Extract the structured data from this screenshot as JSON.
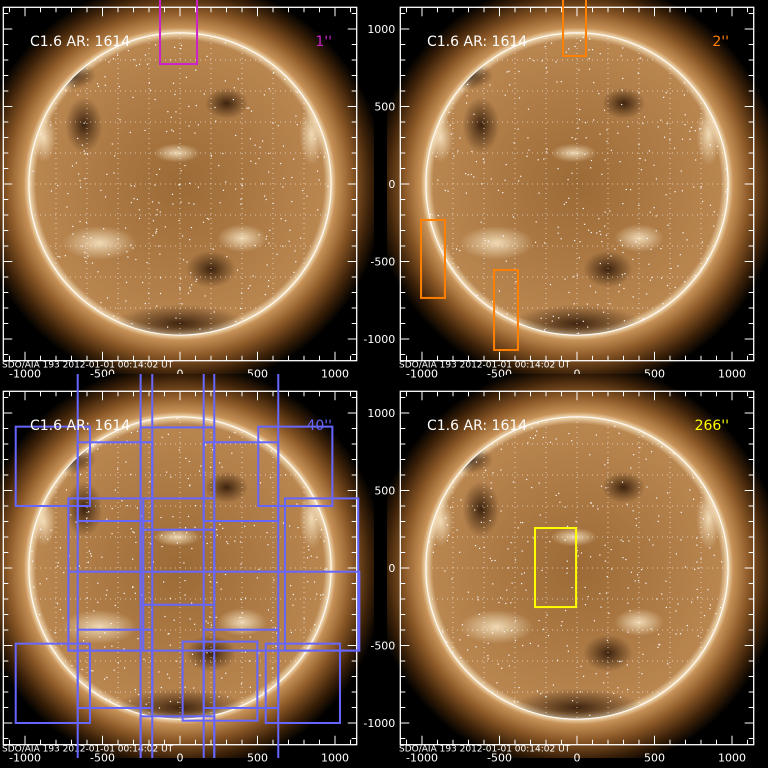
{
  "figure": {
    "disk_radius_arcsec": 975,
    "axis_range_arcsec": [
      -1140,
      1140
    ],
    "tick_labels": [
      "-1000",
      "-500",
      "0",
      "500",
      "1000"
    ],
    "tick_values": [
      -1000,
      -500,
      0,
      500,
      1000
    ],
    "footer": "SDO/AIA 193 2012-01-01 00:14:02 UT",
    "colors": {
      "frame": "#ffffff",
      "grid": "#ffffff"
    }
  },
  "panels": [
    {
      "title": "C1.6 AR: 1614",
      "resolution_label": "1''",
      "color": "#cc22cc",
      "boxes": [
        [
          -129,
          110,
          774,
          1250
        ]
      ]
    },
    {
      "title": "C1.6 AR: 1614",
      "resolution_label": "2''",
      "color": "#ff8000",
      "boxes": [
        [
          -90,
          58,
          826,
          1250
        ],
        [
          -1006,
          -852,
          -232,
          -735
        ],
        [
          -535,
          -381,
          -555,
          -1071
        ]
      ]
    },
    {
      "title": "C1.6 AR: 1614",
      "resolution_label": "40''",
      "color": "#6666ff",
      "boxes": [
        [
          -1060,
          -581,
          912,
          400
        ],
        [
          -660,
          -179,
          811,
          303
        ],
        [
          153,
          634,
          811,
          303
        ],
        [
          505,
          983,
          912,
          400
        ],
        [
          -254,
          221,
          907,
          449
        ],
        [
          -720,
          -237,
          449,
          -533
        ],
        [
          -254,
          221,
          247,
          -237
        ],
        [
          677,
          1150,
          449,
          -533
        ],
        [
          -720,
          1157,
          -24,
          -533
        ],
        [
          -1060,
          -581,
          -488,
          -1000
        ],
        [
          -660,
          -179,
          -398,
          -903
        ],
        [
          17,
          499,
          -475,
          -985
        ],
        [
          153,
          634,
          -398,
          -903
        ],
        [
          553,
          1032,
          -488,
          -1000
        ],
        [
          -254,
          221,
          -957,
          -1400
        ],
        [
          -660,
          -179,
          1300,
          -1400
        ],
        [
          -254,
          221,
          1300,
          -1400
        ],
        [
          153,
          634,
          1300,
          -1400
        ]
      ]
    },
    {
      "title": "C1.6 AR: 1614",
      "resolution_label": "266''",
      "color": "#ffff00",
      "boxes": [
        [
          -271,
          -6,
          258,
          -252
        ]
      ]
    }
  ]
}
